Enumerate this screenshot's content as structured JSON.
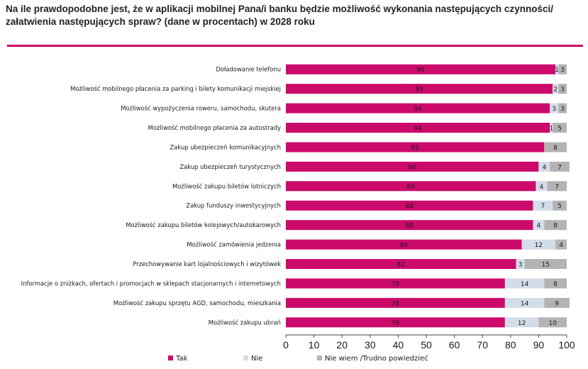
{
  "title": "Na ile prawdopodobne jest, że w aplikacji mobilnej Pana/i banku będzie możliwość wykonania następujących czynności/ załatwienia następujących spraw? (dane w procentach) w 2028 roku",
  "colors": {
    "tak": "#cc0a6c",
    "nie": "#d3dde8",
    "nie_wiem": "#b3b3b3",
    "rule": "#cc0a6c"
  },
  "chart_data": {
    "type": "bar",
    "orientation": "horizontal",
    "stacked": true,
    "title": "Na ile prawdopodobne jest, że w aplikacji mobilnej Pana/i banku będzie możliwość wykonania następujących czynności/ załatwienia następujących spraw? (dane w procentach) w 2028 roku",
    "xlim": [
      0,
      100
    ],
    "xticks": [
      "0",
      "10",
      "20",
      "30",
      "40",
      "50",
      "60",
      "70",
      "80",
      "90",
      "100"
    ],
    "legend_position": "bottom",
    "categories": [
      "Doładowanie telefonu",
      "Możliwość mobilnego płacenia za parking i bilety komunikacji miejskiej",
      "Możliwość wypożyczenia roweru, samochodu, skutera",
      "Możliwość mobilnego płacenia za autostrady",
      "Zakup ubezpieczeń komunikacyjnych",
      "Zakup ubezpieczeń turystycznych",
      "Możliwość zakupu biletów lotniczych",
      "Zakup funduszy inwestycyjnych",
      "Możliwość zakupu biletów kolejowych/autokarowych",
      "Możliwość zamówienia jedzenia",
      "Przechowywanie kart lojalnościowych i wizytówek",
      "Informacje o zniżkach, ofertach i promocjach w sklepach stacjonarnych i internetowych",
      "Możliwość zakupu sprzętu AGD, samochodu, mieszkania",
      "Możliwość zakupu ubrań"
    ],
    "series": [
      {
        "name": "Tak",
        "color": "#cc0a6c",
        "values": [
          96,
          95,
          94,
          94,
          92,
          90,
          89,
          88,
          88,
          84,
          82,
          78,
          78,
          78
        ]
      },
      {
        "name": "Nie",
        "color": "#d3dde8",
        "values": [
          1,
          2,
          3,
          1,
          0,
          4,
          4,
          7,
          4,
          12,
          3,
          14,
          14,
          12
        ]
      },
      {
        "name": "Nie wiem /Trudno powiedzieć",
        "color": "#b3b3b3",
        "values": [
          3,
          3,
          3,
          5,
          8,
          7,
          7,
          5,
          8,
          4,
          15,
          8,
          9,
          10
        ]
      }
    ],
    "labels": [
      [
        "96",
        "1",
        "3"
      ],
      [
        "95",
        "2",
        "3"
      ],
      [
        "94",
        "3",
        "3"
      ],
      [
        "94",
        "1",
        "5"
      ],
      [
        "92",
        "",
        "8"
      ],
      [
        "90",
        "4",
        "7"
      ],
      [
        "89",
        "4",
        "7"
      ],
      [
        "88",
        "7",
        "5"
      ],
      [
        "88",
        "4",
        "8"
      ],
      [
        "84",
        "12",
        "4"
      ],
      [
        "82",
        "3",
        "15"
      ],
      [
        "78",
        "14",
        "8"
      ],
      [
        "78",
        "14",
        "9"
      ],
      [
        "78",
        "12",
        "10"
      ]
    ]
  }
}
